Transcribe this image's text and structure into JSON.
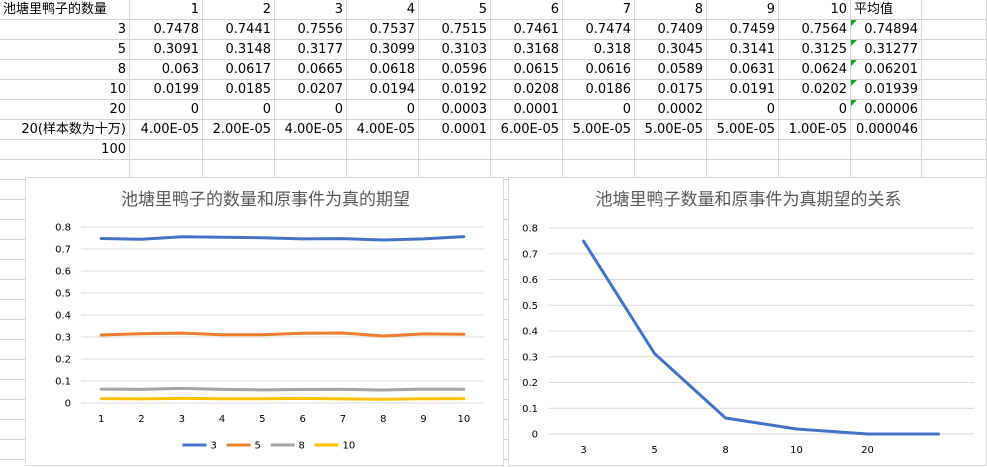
{
  "sheet": {
    "header_label": "池塘里鸭子的数量",
    "avg_label": "平均值",
    "columns": [
      "1",
      "2",
      "3",
      "4",
      "5",
      "6",
      "7",
      "8",
      "9",
      "10"
    ],
    "rows": [
      {
        "label": "3",
        "values": [
          "0.7478",
          "0.7441",
          "0.7556",
          "0.7537",
          "0.7515",
          "0.7461",
          "0.7474",
          "0.7409",
          "0.7459",
          "0.7564"
        ],
        "avg": "0.74894"
      },
      {
        "label": "5",
        "values": [
          "0.3091",
          "0.3148",
          "0.3177",
          "0.3099",
          "0.3103",
          "0.3168",
          "0.318",
          "0.3045",
          "0.3141",
          "0.3125"
        ],
        "avg": "0.31277"
      },
      {
        "label": "8",
        "values": [
          "0.063",
          "0.0617",
          "0.0665",
          "0.0618",
          "0.0596",
          "0.0615",
          "0.0616",
          "0.0589",
          "0.0631",
          "0.0624"
        ],
        "avg": "0.06201"
      },
      {
        "label": "10",
        "values": [
          "0.0199",
          "0.0185",
          "0.0207",
          "0.0194",
          "0.0192",
          "0.0208",
          "0.0186",
          "0.0175",
          "0.0191",
          "0.0202"
        ],
        "avg": "0.01939"
      },
      {
        "label": "20",
        "values": [
          "0",
          "0",
          "0",
          "0",
          "0.0003",
          "0.0001",
          "0",
          "0.0002",
          "0",
          "0"
        ],
        "avg": "0.00006"
      },
      {
        "label": "20(样本数为十万)",
        "values": [
          "4.00E-05",
          "2.00E-05",
          "4.00E-05",
          "4.00E-05",
          "0.0001",
          "6.00E-05",
          "5.00E-05",
          "5.00E-05",
          "5.00E-05",
          "1.00E-05"
        ],
        "avg": "0.000046"
      },
      {
        "label": "100",
        "values": [
          "",
          "",
          "",
          "",
          "",
          "",
          "",
          "",
          "",
          ""
        ],
        "avg": ""
      }
    ]
  },
  "chart_data": [
    {
      "type": "line",
      "title": "池塘里鸭子的数量和原事件为真的期望",
      "x": [
        "1",
        "2",
        "3",
        "4",
        "5",
        "6",
        "7",
        "8",
        "9",
        "10"
      ],
      "ylim": [
        0,
        0.8
      ],
      "yticks": [
        "0",
        "0.1",
        "0.2",
        "0.3",
        "0.4",
        "0.5",
        "0.6",
        "0.7",
        "0.8"
      ],
      "grid": true,
      "legend": "bottom",
      "series": [
        {
          "name": "3",
          "color": "#4472c4",
          "values": [
            0.7478,
            0.7441,
            0.7556,
            0.7537,
            0.7515,
            0.7461,
            0.7474,
            0.7409,
            0.7459,
            0.7564
          ]
        },
        {
          "name": "5",
          "color": "#ed7d31",
          "values": [
            0.3091,
            0.3148,
            0.3177,
            0.3099,
            0.3103,
            0.3168,
            0.318,
            0.3045,
            0.3141,
            0.3125
          ]
        },
        {
          "name": "8",
          "color": "#a5a5a5",
          "values": [
            0.063,
            0.0617,
            0.0665,
            0.0618,
            0.0596,
            0.0615,
            0.0616,
            0.0589,
            0.0631,
            0.0624
          ]
        },
        {
          "name": "10",
          "color": "#ffc000",
          "values": [
            0.0199,
            0.0185,
            0.0207,
            0.0194,
            0.0192,
            0.0208,
            0.0186,
            0.0175,
            0.0191,
            0.0202
          ]
        }
      ]
    },
    {
      "type": "line",
      "title": "池塘里鸭子数量和原事件为真期望的关系",
      "x": [
        "3",
        "5",
        "8",
        "10",
        "20",
        ""
      ],
      "ylim": [
        0,
        0.8
      ],
      "yticks": [
        "0",
        "0.1",
        "0.2",
        "0.3",
        "0.4",
        "0.5",
        "0.6",
        "0.7",
        "0.8"
      ],
      "grid": true,
      "legend": "none",
      "series": [
        {
          "color": "#4472c4",
          "values": [
            0.74894,
            0.31277,
            0.06201,
            0.01939,
            6e-05,
            4.6e-05
          ]
        }
      ]
    }
  ]
}
